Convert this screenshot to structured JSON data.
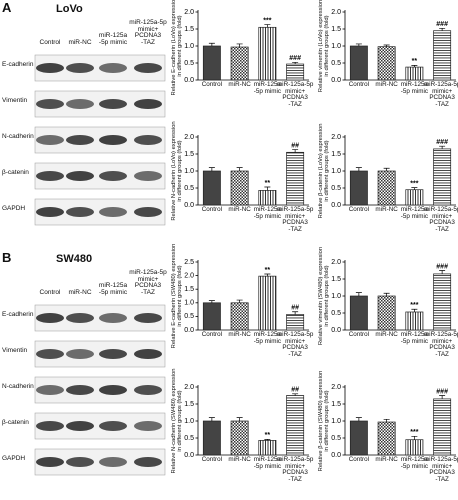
{
  "panels": [
    {
      "letter": "A",
      "cell_line": "LoVo",
      "columns": [
        "Control",
        "miR-NC",
        "miR-125a\n-5p mimic",
        "miR-125a-5p\nmimic+\nPCDNA3\n-TAZ"
      ],
      "rows": [
        "E-cadherin",
        "Vimentin",
        "N-cadherin",
        "β-catenin",
        "GAPDH"
      ]
    },
    {
      "letter": "B",
      "cell_line": "SW480",
      "columns": [
        "Control",
        "miR-NC",
        "miR-125a\n-5p mimic",
        "miR-125a-5p\nmimic+\nPCDNA3\n-TAZ"
      ],
      "rows": [
        "E-cadherin",
        "Vimentin",
        "N-cadherin",
        "β-catenin",
        "GAPDH"
      ]
    }
  ],
  "chart_data": [
    {
      "type": "bar",
      "ylabel": "Relative E-cadherin (LoVo) expression\nin different groups (fold)",
      "categories": [
        "Control",
        "miR-NC",
        "miR-125a\n-5p mimic",
        "miR-125a-5p\nmimic+\nPCDNA3\n-TAZ"
      ],
      "values": [
        1.0,
        0.97,
        1.55,
        0.47
      ],
      "errors": [
        0.08,
        0.09,
        0.08,
        0.05
      ],
      "annotations": [
        null,
        null,
        "***",
        "###"
      ],
      "bar_styles": [
        "solid",
        "checker",
        "vlines",
        "hlines"
      ],
      "color": "#444444",
      "ylim": [
        0,
        2.0
      ],
      "yticks": [
        {
          "value": 0,
          "label": "0.0"
        },
        {
          "value": 0.5,
          "label": "0.5"
        },
        {
          "value": 1.0,
          "label": "1.0"
        },
        {
          "value": 1.5,
          "label": "1.5"
        },
        {
          "value": 2.0,
          "label": "2.0"
        }
      ]
    },
    {
      "type": "bar",
      "ylabel": "Relative vimentin (LoVo) expression\nin different groups (fold)",
      "categories": [
        "Control",
        "miR-NC",
        "miR-125a\n-5p mimic",
        "miR-125a-5p\nmimic+\nPCDNA3\n-TAZ"
      ],
      "values": [
        1.0,
        0.98,
        0.38,
        1.45
      ],
      "errors": [
        0.06,
        0.05,
        0.05,
        0.07
      ],
      "annotations": [
        null,
        null,
        "**",
        "###"
      ],
      "bar_styles": [
        "solid",
        "checker",
        "vlines",
        "hlines"
      ],
      "color": "#444444",
      "ylim": [
        0,
        2.0
      ],
      "yticks": [
        {
          "value": 0,
          "label": "0.0"
        },
        {
          "value": 0.5,
          "label": "0.5"
        },
        {
          "value": 1.0,
          "label": "1.0"
        },
        {
          "value": 1.5,
          "label": "1.5"
        },
        {
          "value": 2.0,
          "label": "2.0"
        }
      ]
    },
    {
      "type": "bar",
      "ylabel": "Relative N-cadherin (LoVo) expression\nin different groups (fold)",
      "categories": [
        "Control",
        "miR-NC",
        "miR-125a\n-5p mimic",
        "miR-125a-5p\nmimic+\nPCDNA3\n-TAZ"
      ],
      "values": [
        1.0,
        1.0,
        0.43,
        1.55
      ],
      "errors": [
        0.1,
        0.1,
        0.1,
        0.08
      ],
      "annotations": [
        null,
        null,
        "**",
        "##"
      ],
      "bar_styles": [
        "solid",
        "checker",
        "vlines",
        "hlines"
      ],
      "color": "#444444",
      "ylim": [
        0,
        2.0
      ],
      "yticks": [
        {
          "value": 0,
          "label": "0.0"
        },
        {
          "value": 0.5,
          "label": "0.5"
        },
        {
          "value": 1.0,
          "label": "1.0"
        },
        {
          "value": 1.5,
          "label": "1.5"
        },
        {
          "value": 2.0,
          "label": "2.0"
        }
      ]
    },
    {
      "type": "bar",
      "ylabel": "Relative β-catenin (LoVo) expression\nin different groups (fold)",
      "categories": [
        "Control",
        "miR-NC",
        "miR-125a\n-5p mimic",
        "miR-125a-5p\nmimic+\nPCDNA3\n-TAZ"
      ],
      "values": [
        1.0,
        1.0,
        0.45,
        1.65
      ],
      "errors": [
        0.1,
        0.08,
        0.06,
        0.08
      ],
      "annotations": [
        null,
        null,
        "***",
        "###"
      ],
      "bar_styles": [
        "solid",
        "checker",
        "vlines",
        "hlines"
      ],
      "color": "#444444",
      "ylim": [
        0,
        2.0
      ],
      "yticks": [
        {
          "value": 0,
          "label": "0.0"
        },
        {
          "value": 0.5,
          "label": "0.5"
        },
        {
          "value": 1.0,
          "label": "1.0"
        },
        {
          "value": 1.5,
          "label": "1.5"
        },
        {
          "value": 2.0,
          "label": "2.0"
        }
      ]
    },
    {
      "type": "bar",
      "ylabel": "Relative E-cadherin (SW480) expression\nin different groups (fold)",
      "categories": [
        "Control",
        "miR-NC",
        "miR-125a\n-5p mimic",
        "miR-125a-5p\nmimic+\nPCDNA3\n-TAZ"
      ],
      "values": [
        1.0,
        1.0,
        1.98,
        0.57
      ],
      "errors": [
        0.08,
        0.1,
        0.08,
        0.1
      ],
      "annotations": [
        null,
        null,
        "**",
        "##"
      ],
      "bar_styles": [
        "solid",
        "checker",
        "vlines",
        "hlines"
      ],
      "color": "#444444",
      "ylim": [
        0,
        2.5
      ],
      "yticks": [
        {
          "value": 0,
          "label": "0.0"
        },
        {
          "value": 0.5,
          "label": "0.5"
        },
        {
          "value": 1.0,
          "label": "1.0"
        },
        {
          "value": 1.5,
          "label": "1.5"
        },
        {
          "value": 2.0,
          "label": "2.0"
        },
        {
          "value": 2.5,
          "label": "2.5"
        }
      ]
    },
    {
      "type": "bar",
      "ylabel": "Relative vimentin (SW480) expression\nin different groups (fold)",
      "categories": [
        "Control",
        "miR-NC",
        "miR-125a\n-5p mimic",
        "miR-125a-5p\nmimic+\nPCDNA3\n-TAZ"
      ],
      "values": [
        1.0,
        1.0,
        0.53,
        1.65
      ],
      "errors": [
        0.1,
        0.08,
        0.08,
        0.1
      ],
      "annotations": [
        null,
        null,
        "***",
        "###"
      ],
      "bar_styles": [
        "solid",
        "checker",
        "vlines",
        "hlines"
      ],
      "color": "#444444",
      "ylim": [
        0,
        2.0
      ],
      "yticks": [
        {
          "value": 0,
          "label": "0.0"
        },
        {
          "value": 0.5,
          "label": "0.5"
        },
        {
          "value": 1.0,
          "label": "1.0"
        },
        {
          "value": 1.5,
          "label": "1.5"
        },
        {
          "value": 2.0,
          "label": "2.0"
        }
      ]
    },
    {
      "type": "bar",
      "ylabel": "Relative N-cadherin (SW480) expression\nin different groups (fold)",
      "categories": [
        "Control",
        "miR-NC",
        "miR-125a\n-5p mimic",
        "miR-125a-5p\nmimic+\nPCDNA3\n-TAZ"
      ],
      "values": [
        1.0,
        1.0,
        0.43,
        1.75
      ],
      "errors": [
        0.1,
        0.1,
        0.03,
        0.05
      ],
      "annotations": [
        null,
        null,
        "**",
        "##"
      ],
      "bar_styles": [
        "solid",
        "checker",
        "vlines",
        "hlines"
      ],
      "color": "#444444",
      "ylim": [
        0,
        2.0
      ],
      "yticks": [
        {
          "value": 0,
          "label": "0.0"
        },
        {
          "value": 0.5,
          "label": "0.5"
        },
        {
          "value": 1.0,
          "label": "1.0"
        },
        {
          "value": 1.5,
          "label": "1.5"
        },
        {
          "value": 2.0,
          "label": "2.0"
        }
      ]
    },
    {
      "type": "bar",
      "ylabel": "Relative β-catenin (SW480) expression\nin different groups (fold)",
      "categories": [
        "Control",
        "miR-NC",
        "miR-125a\n-5p mimic",
        "miR-125a-5p\nmimic+\nPCDNA3\n-TAZ"
      ],
      "values": [
        1.0,
        0.97,
        0.45,
        1.65
      ],
      "errors": [
        0.1,
        0.08,
        0.1,
        0.1
      ],
      "annotations": [
        null,
        null,
        "***",
        "###"
      ],
      "bar_styles": [
        "solid",
        "checker",
        "vlines",
        "hlines"
      ],
      "color": "#444444",
      "ylim": [
        0,
        2.0
      ],
      "yticks": [
        {
          "value": 0,
          "label": "0.0"
        },
        {
          "value": 0.5,
          "label": "0.5"
        },
        {
          "value": 1.0,
          "label": "1.0"
        },
        {
          "value": 1.5,
          "label": "1.5"
        },
        {
          "value": 2.0,
          "label": "2.0"
        }
      ]
    }
  ]
}
